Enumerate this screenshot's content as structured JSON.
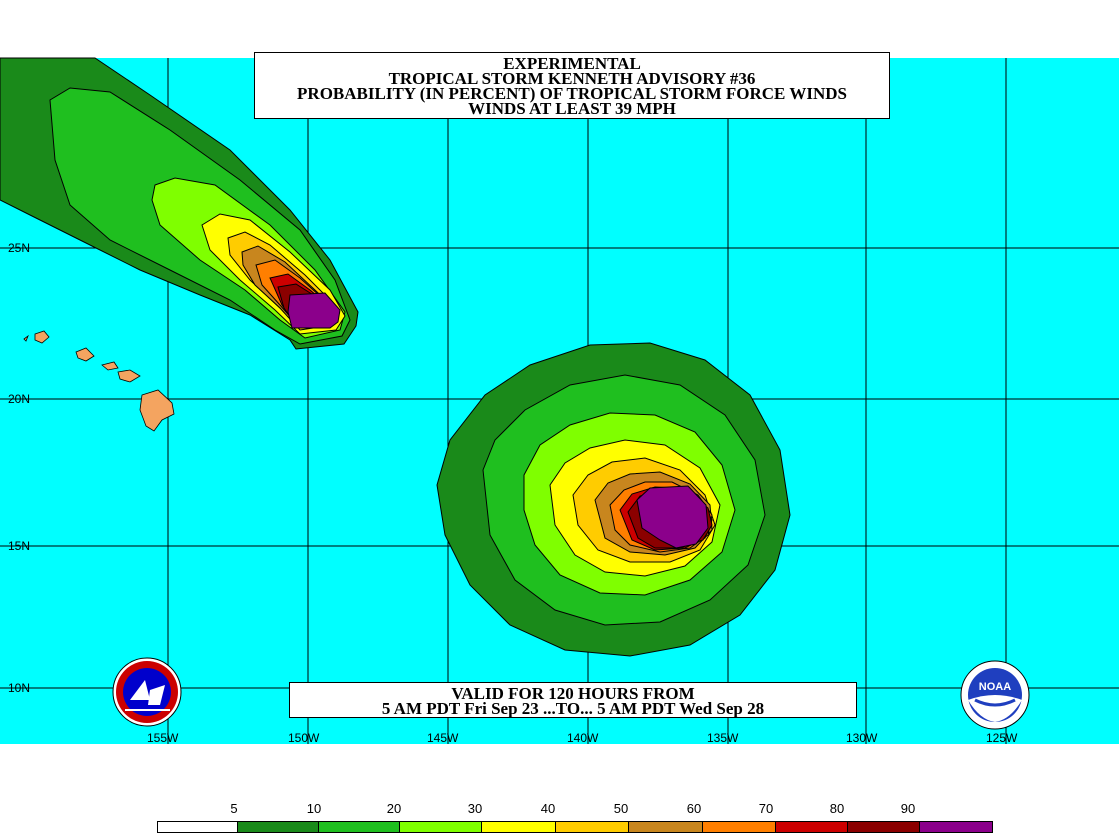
{
  "title": {
    "line1": "EXPERIMENTAL",
    "line2": "TROPICAL STORM KENNETH ADVISORY #36",
    "line3": "PROBABILITY (IN PERCENT) OF TROPICAL STORM FORCE WINDS",
    "line4": "WINDS AT LEAST 39 MPH"
  },
  "valid": {
    "line1": "VALID FOR 120 HOURS FROM",
    "line2": "5 AM PDT Fri Sep 23 ...TO... 5 AM PDT Wed Sep 28"
  },
  "latitude_labels": [
    "25N",
    "20N",
    "15N",
    "10N"
  ],
  "longitude_labels": [
    "155W",
    "150W",
    "145W",
    "140W",
    "135W",
    "130W",
    "125W"
  ],
  "legend": {
    "labels": [
      "5",
      "10",
      "20",
      "30",
      "40",
      "50",
      "60",
      "70",
      "80",
      "90"
    ],
    "colors": [
      "#ffffff",
      "#1a8a1a",
      "#1fbf1f",
      "#7fff00",
      "#ffff00",
      "#ffcc00",
      "#c8861e",
      "#ff7f00",
      "#cc0000",
      "#8b0000",
      "#8b008b"
    ]
  },
  "colors": {
    "ocean": "#00ffff",
    "land": "#f4a460"
  },
  "logos": {
    "left": "nws-logo",
    "right": "noaa-logo",
    "noaa_text": "NOAA"
  }
}
